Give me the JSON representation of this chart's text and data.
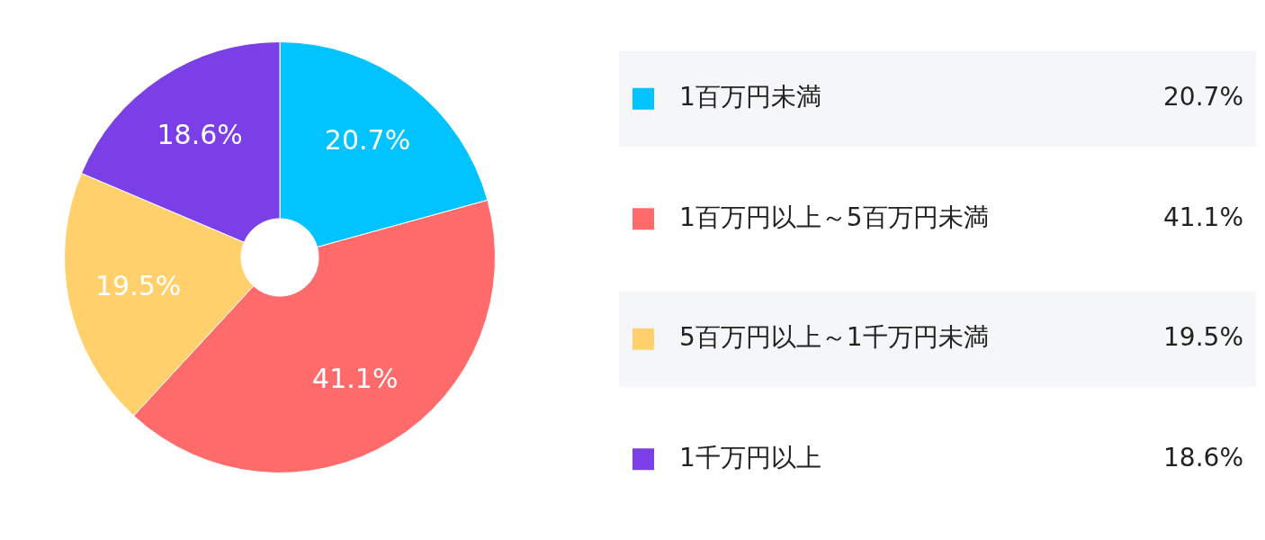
{
  "chart_data": {
    "type": "donut",
    "categories": [
      "1百万円未満",
      "1百万円以上～5百万円未満",
      "5百万円以上～1千万円未満",
      "1千万円以上"
    ],
    "values": [
      20.7,
      41.1,
      19.5,
      18.6
    ],
    "value_labels": [
      "20.7%",
      "41.1%",
      "19.5%",
      "18.6%"
    ],
    "colors": [
      "#00c3ff",
      "#ff6b6b",
      "#ffd06b",
      "#7b3fe8"
    ],
    "legend": "right"
  }
}
